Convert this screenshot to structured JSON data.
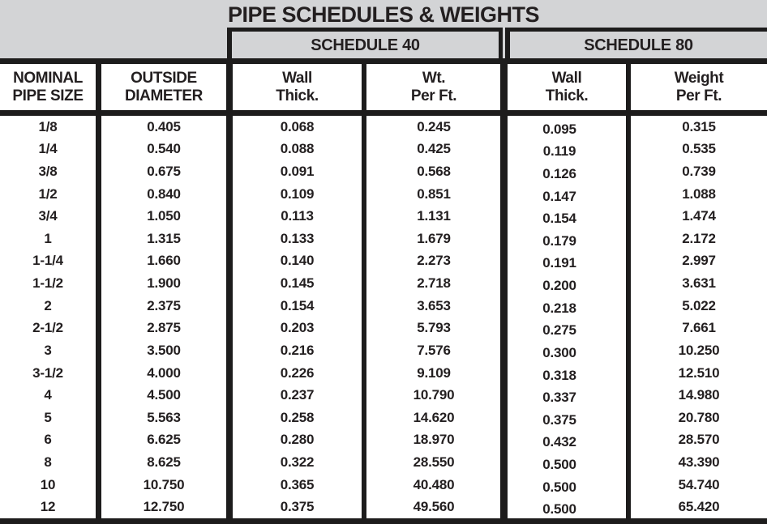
{
  "title": "PIPE SCHEDULES & WEIGHTS",
  "table": {
    "schedule_groups": [
      {
        "label": "SCHEDULE 40"
      },
      {
        "label": "SCHEDULE 80"
      }
    ],
    "columns": [
      {
        "line1": "NOMINAL",
        "line2": "PIPE SIZE"
      },
      {
        "line1": "OUTSIDE",
        "line2": "DIAMETER"
      },
      {
        "line1": "Wall",
        "line2": "Thick."
      },
      {
        "line1": "Wt.",
        "line2": "Per Ft."
      },
      {
        "line1": "Wall",
        "line2": "Thick."
      },
      {
        "line1": "Weight",
        "line2": "Per Ft."
      }
    ],
    "rows": [
      {
        "size": "1/8",
        "od": "0.405",
        "wall40": "0.068",
        "wt40": "0.245",
        "wall80": "0.095",
        "wt80": "0.315"
      },
      {
        "size": "1/4",
        "od": "0.540",
        "wall40": "0.088",
        "wt40": "0.425",
        "wall80": "0.119",
        "wt80": "0.535"
      },
      {
        "size": "3/8",
        "od": "0.675",
        "wall40": "0.091",
        "wt40": "0.568",
        "wall80": "0.126",
        "wt80": "0.739"
      },
      {
        "size": "1/2",
        "od": "0.840",
        "wall40": "0.109",
        "wt40": "0.851",
        "wall80": "0.147",
        "wt80": "1.088"
      },
      {
        "size": "3/4",
        "od": "1.050",
        "wall40": "0.113",
        "wt40": "1.131",
        "wall80": "0.154",
        "wt80": "1.474"
      },
      {
        "size": "1",
        "od": "1.315",
        "wall40": "0.133",
        "wt40": "1.679",
        "wall80": "0.179",
        "wt80": "2.172"
      },
      {
        "size": "1-1/4",
        "od": "1.660",
        "wall40": "0.140",
        "wt40": "2.273",
        "wall80": "0.191",
        "wt80": "2.997"
      },
      {
        "size": "1-1/2",
        "od": "1.900",
        "wall40": "0.145",
        "wt40": "2.718",
        "wall80": "0.200",
        "wt80": "3.631"
      },
      {
        "size": "2",
        "od": "2.375",
        "wall40": "0.154",
        "wt40": "3.653",
        "wall80": "0.218",
        "wt80": "5.022"
      },
      {
        "size": "2-1/2",
        "od": "2.875",
        "wall40": "0.203",
        "wt40": "5.793",
        "wall80": "0.275",
        "wt80": "7.661"
      },
      {
        "size": "3",
        "od": "3.500",
        "wall40": "0.216",
        "wt40": "7.576",
        "wall80": "0.300",
        "wt80": "10.250"
      },
      {
        "size": "3-1/2",
        "od": "4.000",
        "wall40": "0.226",
        "wt40": "9.109",
        "wall80": "0.318",
        "wt80": "12.510"
      },
      {
        "size": "4",
        "od": "4.500",
        "wall40": "0.237",
        "wt40": "10.790",
        "wall80": "0.337",
        "wt80": "14.980"
      },
      {
        "size": "5",
        "od": "5.563",
        "wall40": "0.258",
        "wt40": "14.620",
        "wall80": "0.375",
        "wt80": "20.780"
      },
      {
        "size": "6",
        "od": "6.625",
        "wall40": "0.280",
        "wt40": "18.970",
        "wall80": "0.432",
        "wt80": "28.570"
      },
      {
        "size": "8",
        "od": "8.625",
        "wall40": "0.322",
        "wt40": "28.550",
        "wall80": "0.500",
        "wt80": "43.390"
      },
      {
        "size": "10",
        "od": "10.750",
        "wall40": "0.365",
        "wt40": "40.480",
        "wall80": "0.500",
        "wt80": "54.740"
      },
      {
        "size": "12",
        "od": "12.750",
        "wall40": "0.375",
        "wt40": "49.560",
        "wall80": "0.500",
        "wt80": "65.420"
      }
    ]
  },
  "colors": {
    "background_gray": "#d3d4d6",
    "cell_white": "#ffffff",
    "border_black": "#1d1c1c",
    "text": "#231f20"
  }
}
